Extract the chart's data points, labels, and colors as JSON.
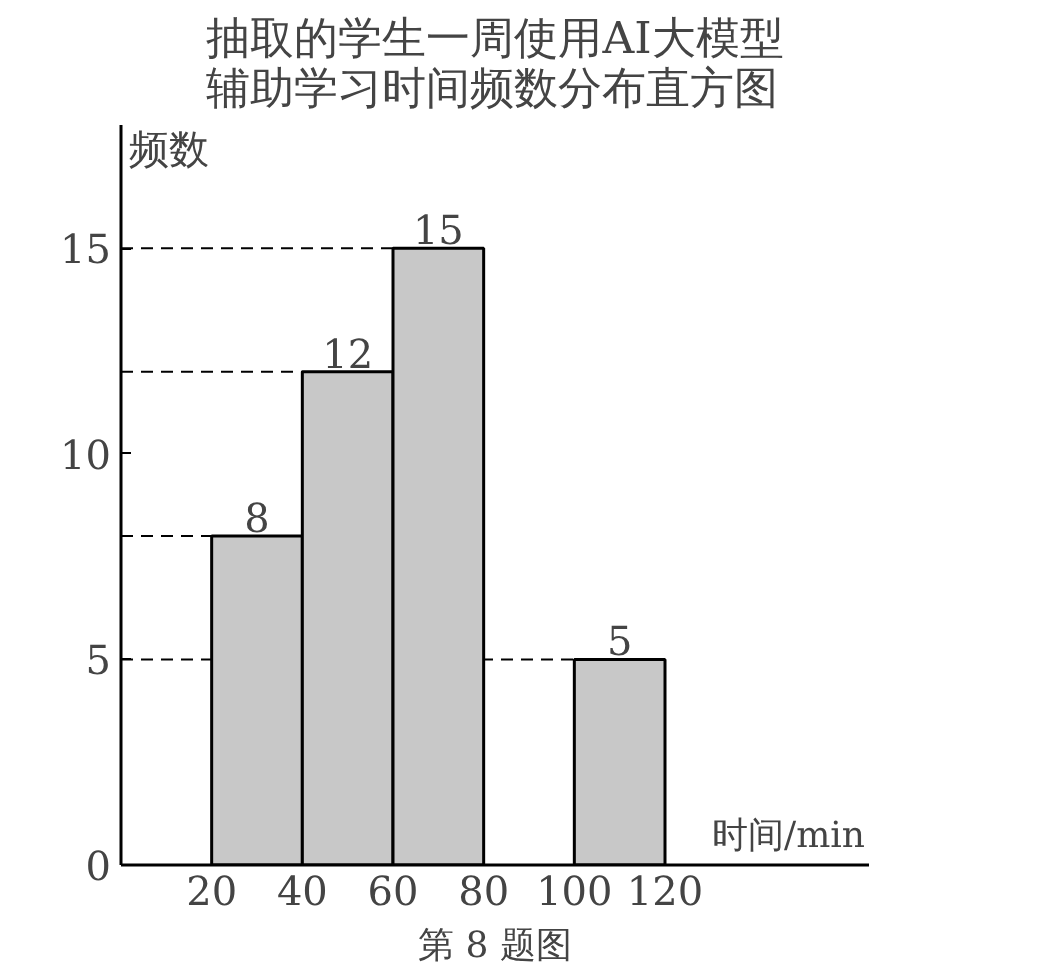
{
  "chart_data": {
    "type": "histogram",
    "title": "抽取的学生一周使用AI大模型辅助学习时间频数分布直方图",
    "xlabel": "时间/min",
    "ylabel": "频数",
    "bins": [
      20,
      40,
      60,
      80,
      100,
      120
    ],
    "values": [
      8,
      12,
      15,
      null,
      5
    ],
    "color": "#c8c8c8",
    "xlim": [
      0,
      165
    ],
    "ylim": [
      0,
      18
    ],
    "xticks": [
      20,
      40,
      60,
      80,
      100,
      120
    ],
    "yticks": [
      0,
      5,
      10,
      15
    ],
    "data_labels": true,
    "grid": false,
    "ref_lines": [
      {
        "axis": "y",
        "value": 5,
        "line_style": "dashed"
      },
      {
        "axis": "y",
        "value": 8,
        "line_style": "dashed"
      },
      {
        "axis": "y",
        "value": 12,
        "line_style": "dashed"
      },
      {
        "axis": "y",
        "value": 15,
        "line_style": "dashed"
      }
    ],
    "annotations": [
      "第 8 题图"
    ]
  }
}
